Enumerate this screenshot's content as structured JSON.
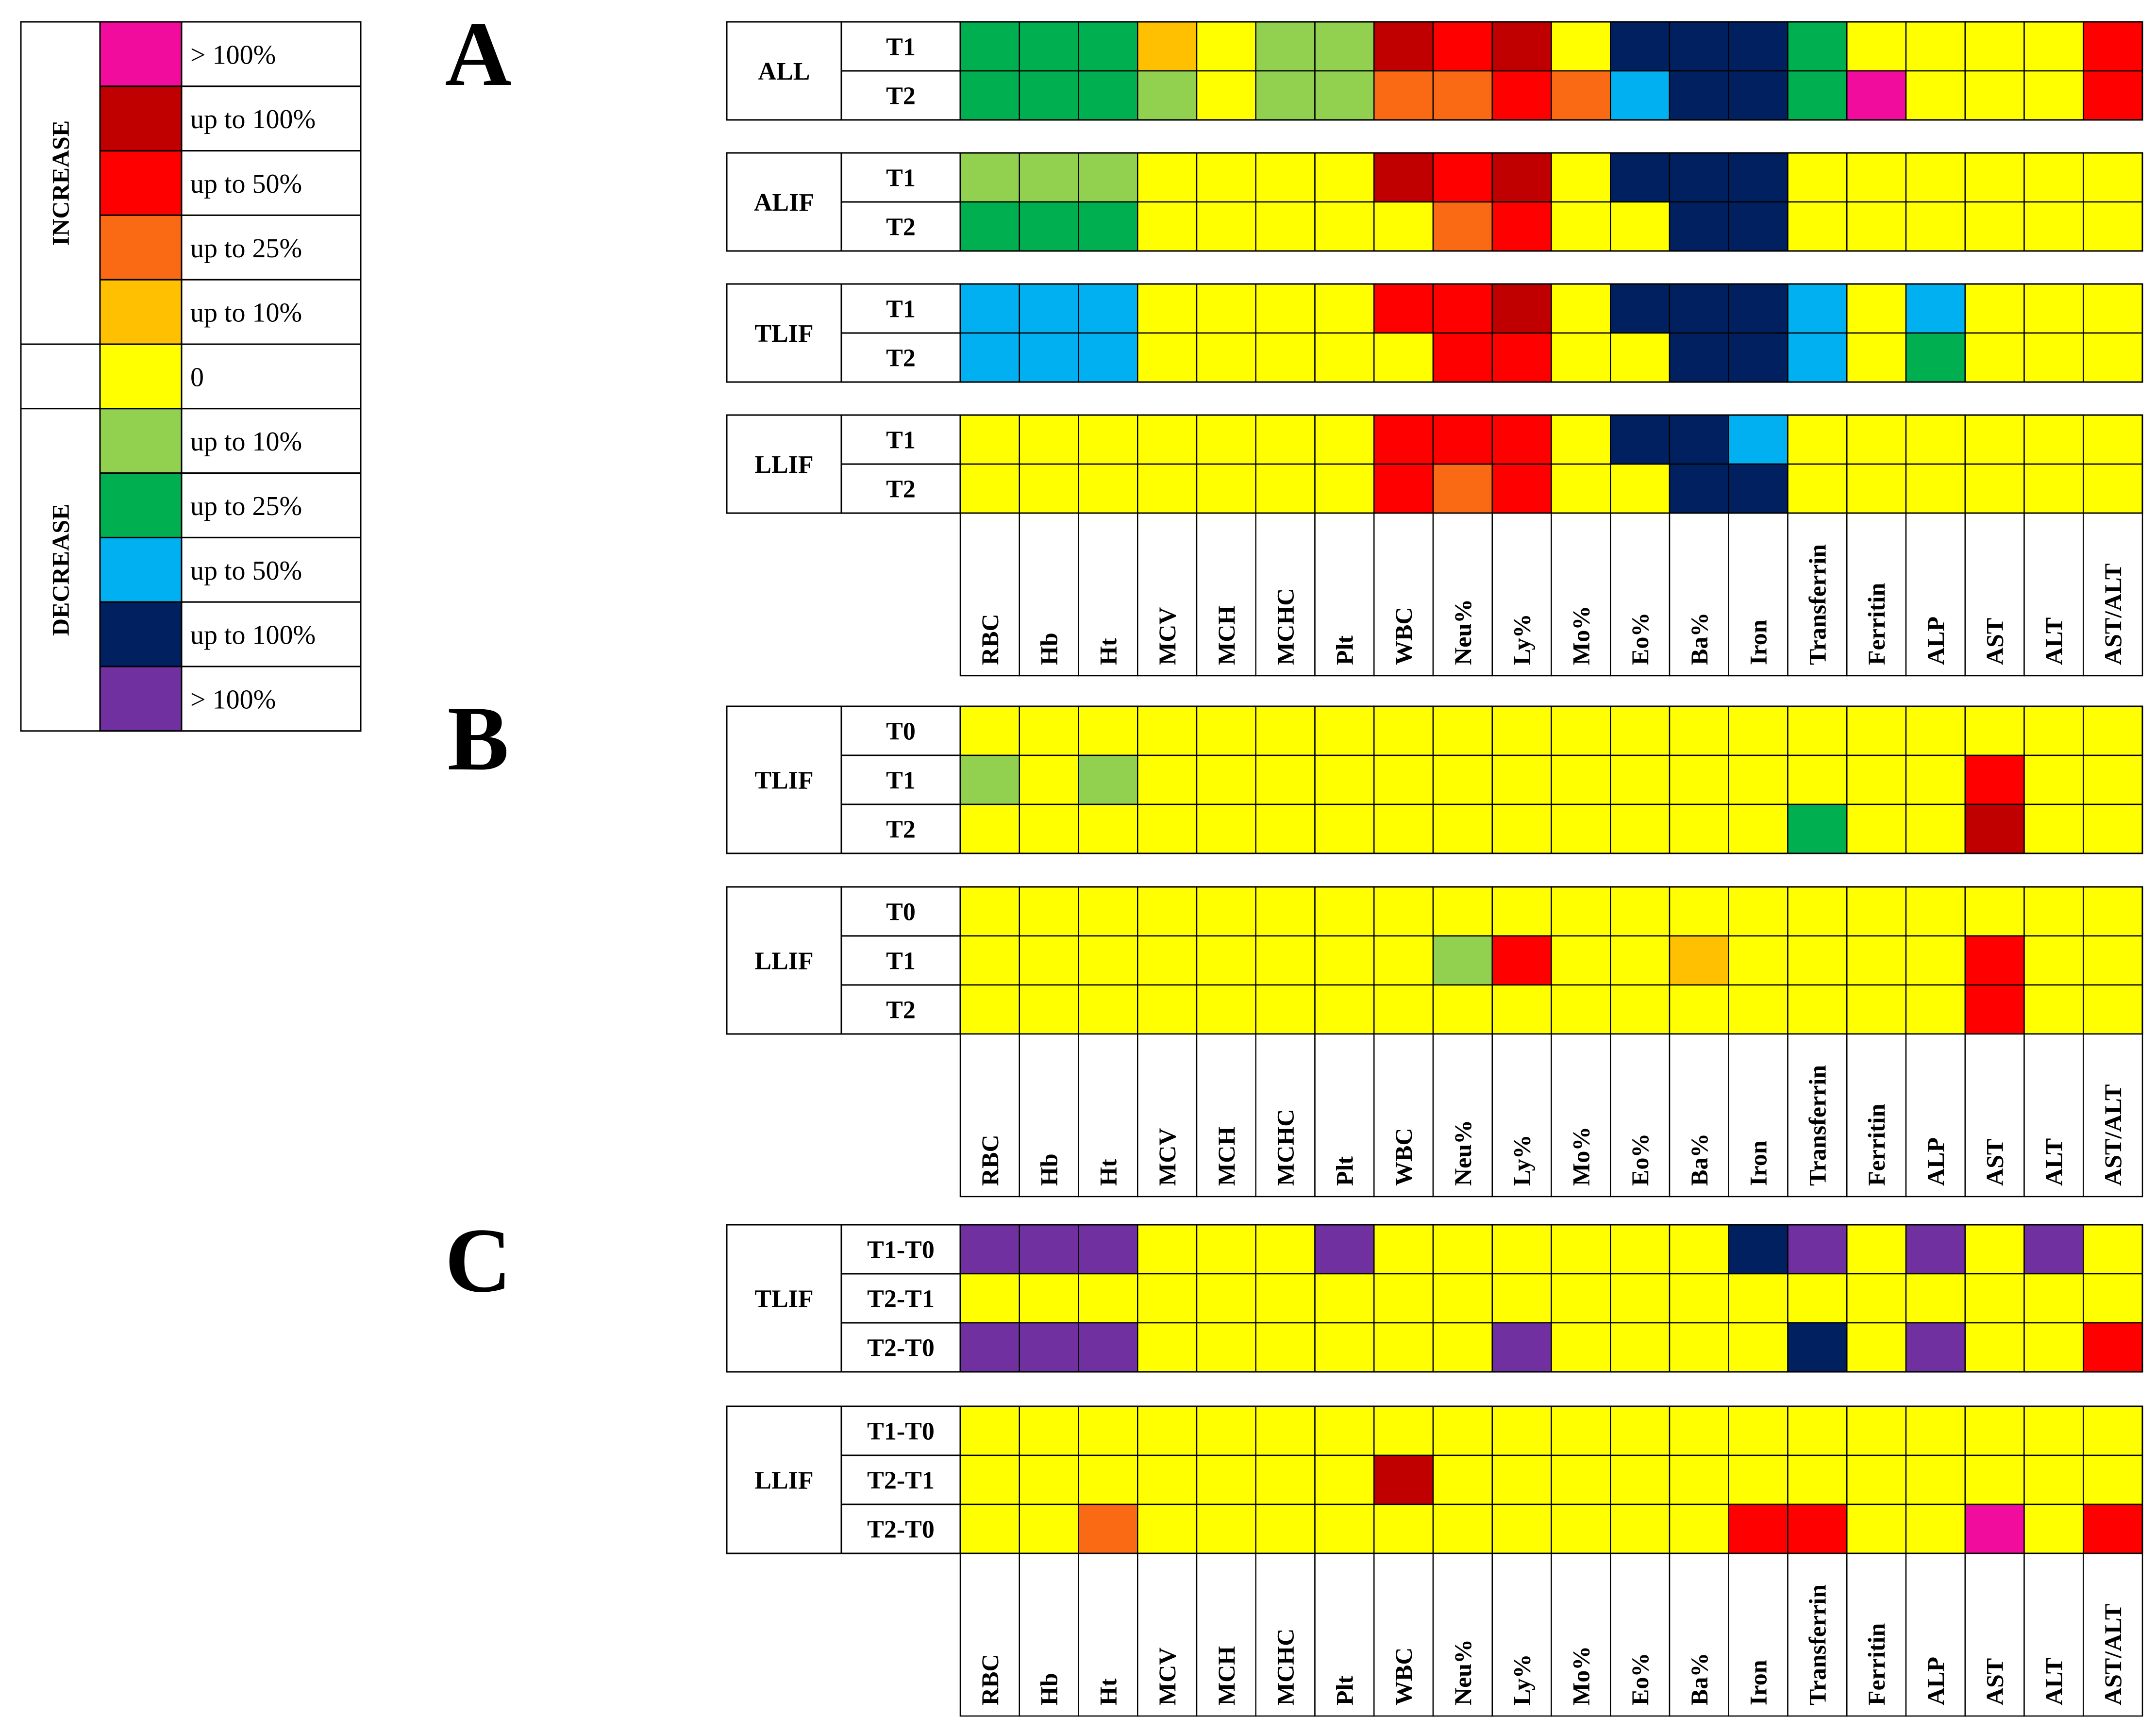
{
  "colors": {
    "inc_gt100": "#f20c9d",
    "inc_100": "#c00000",
    "inc_50": "#ff0000",
    "inc_25": "#fa6a14",
    "inc_10": "#fec000",
    "zero": "#ffff00",
    "dec_10": "#92d050",
    "dec_25": "#00b050",
    "dec_50": "#00b0f0",
    "dec_100": "#002060",
    "dec_gt100": "#7030a0"
  },
  "legend": {
    "increase_label": "INCREASE",
    "decrease_label": "DECREASE",
    "items": [
      {
        "key": "inc_gt100",
        "label": "> 100%"
      },
      {
        "key": "inc_100",
        "label": "up to 100%"
      },
      {
        "key": "inc_50",
        "label": "up to 50%"
      },
      {
        "key": "inc_25",
        "label": "up to 25%"
      },
      {
        "key": "inc_10",
        "label": "up to 10%"
      },
      {
        "key": "zero",
        "label": "0"
      },
      {
        "key": "dec_10",
        "label": "up to 10%"
      },
      {
        "key": "dec_25",
        "label": "up to 25%"
      },
      {
        "key": "dec_50",
        "label": "up to 50%"
      },
      {
        "key": "dec_100",
        "label": "up to 100%"
      },
      {
        "key": "dec_gt100",
        "label": "> 100%"
      }
    ]
  },
  "chart_data": {
    "type": "heatmap",
    "columns": [
      "RBC",
      "Hb",
      "Ht",
      "MCV",
      "MCH",
      "MCHC",
      "Plt",
      "WBC",
      "Neu%",
      "Ly%",
      "Mo%",
      "Eo%",
      "Ba%",
      "Iron",
      "Transferrin",
      "Ferritin",
      "ALP",
      "AST",
      "ALT",
      "AST/ALT"
    ],
    "panels": [
      {
        "label": "A",
        "groups": [
          {
            "name": "ALL",
            "rows": [
              {
                "label": "T1",
                "cells": [
                  "dec_25",
                  "dec_25",
                  "dec_25",
                  "inc_10",
                  "zero",
                  "dec_10",
                  "dec_10",
                  "inc_100",
                  "inc_50",
                  "inc_100",
                  "zero",
                  "dec_100",
                  "dec_100",
                  "dec_100",
                  "dec_25",
                  "zero",
                  "zero",
                  "zero",
                  "zero",
                  "inc_50"
                ]
              },
              {
                "label": "T2",
                "cells": [
                  "dec_25",
                  "dec_25",
                  "dec_25",
                  "dec_10",
                  "zero",
                  "dec_10",
                  "dec_10",
                  "inc_25",
                  "inc_25",
                  "inc_50",
                  "inc_25",
                  "dec_50",
                  "dec_100",
                  "dec_100",
                  "dec_25",
                  "inc_gt100",
                  "zero",
                  "zero",
                  "zero",
                  "inc_50"
                ]
              }
            ]
          },
          {
            "name": "ALIF",
            "rows": [
              {
                "label": "T1",
                "cells": [
                  "dec_10",
                  "dec_10",
                  "dec_10",
                  "zero",
                  "zero",
                  "zero",
                  "zero",
                  "inc_100",
                  "inc_50",
                  "inc_100",
                  "zero",
                  "dec_100",
                  "dec_100",
                  "dec_100",
                  "zero",
                  "zero",
                  "zero",
                  "zero",
                  "zero",
                  "zero"
                ]
              },
              {
                "label": "T2",
                "cells": [
                  "dec_25",
                  "dec_25",
                  "dec_25",
                  "zero",
                  "zero",
                  "zero",
                  "zero",
                  "zero",
                  "inc_25",
                  "inc_50",
                  "zero",
                  "zero",
                  "dec_100",
                  "dec_100",
                  "zero",
                  "zero",
                  "zero",
                  "zero",
                  "zero",
                  "zero"
                ]
              }
            ]
          },
          {
            "name": "TLIF",
            "rows": [
              {
                "label": "T1",
                "cells": [
                  "dec_50",
                  "dec_50",
                  "dec_50",
                  "zero",
                  "zero",
                  "zero",
                  "zero",
                  "inc_50",
                  "inc_50",
                  "inc_100",
                  "zero",
                  "dec_100",
                  "dec_100",
                  "dec_100",
                  "dec_50",
                  "zero",
                  "dec_50",
                  "zero",
                  "zero",
                  "zero"
                ]
              },
              {
                "label": "T2",
                "cells": [
                  "dec_50",
                  "dec_50",
                  "dec_50",
                  "zero",
                  "zero",
                  "zero",
                  "zero",
                  "zero",
                  "inc_50",
                  "inc_50",
                  "zero",
                  "zero",
                  "dec_100",
                  "dec_100",
                  "dec_50",
                  "zero",
                  "dec_25",
                  "zero",
                  "zero",
                  "zero"
                ]
              }
            ]
          },
          {
            "name": "LLIF",
            "rows": [
              {
                "label": "T1",
                "cells": [
                  "zero",
                  "zero",
                  "zero",
                  "zero",
                  "zero",
                  "zero",
                  "zero",
                  "inc_50",
                  "inc_50",
                  "inc_50",
                  "zero",
                  "dec_100",
                  "dec_100",
                  "dec_50",
                  "zero",
                  "zero",
                  "zero",
                  "zero",
                  "zero",
                  "zero"
                ]
              },
              {
                "label": "T2",
                "cells": [
                  "zero",
                  "zero",
                  "zero",
                  "zero",
                  "zero",
                  "zero",
                  "zero",
                  "inc_50",
                  "inc_25",
                  "inc_50",
                  "zero",
                  "zero",
                  "dec_100",
                  "dec_100",
                  "zero",
                  "zero",
                  "zero",
                  "zero",
                  "zero",
                  "zero"
                ]
              }
            ]
          }
        ]
      },
      {
        "label": "B",
        "groups": [
          {
            "name": "TLIF",
            "rows": [
              {
                "label": "T0",
                "cells": [
                  "zero",
                  "zero",
                  "zero",
                  "zero",
                  "zero",
                  "zero",
                  "zero",
                  "zero",
                  "zero",
                  "zero",
                  "zero",
                  "zero",
                  "zero",
                  "zero",
                  "zero",
                  "zero",
                  "zero",
                  "zero",
                  "zero",
                  "zero"
                ]
              },
              {
                "label": "T1",
                "cells": [
                  "dec_10",
                  "zero",
                  "dec_10",
                  "zero",
                  "zero",
                  "zero",
                  "zero",
                  "zero",
                  "zero",
                  "zero",
                  "zero",
                  "zero",
                  "zero",
                  "zero",
                  "zero",
                  "zero",
                  "zero",
                  "inc_50",
                  "zero",
                  "zero"
                ]
              },
              {
                "label": "T2",
                "cells": [
                  "zero",
                  "zero",
                  "zero",
                  "zero",
                  "zero",
                  "zero",
                  "zero",
                  "zero",
                  "zero",
                  "zero",
                  "zero",
                  "zero",
                  "zero",
                  "zero",
                  "dec_25",
                  "zero",
                  "zero",
                  "inc_100",
                  "zero",
                  "zero"
                ]
              }
            ]
          },
          {
            "name": "LLIF",
            "rows": [
              {
                "label": "T0",
                "cells": [
                  "zero",
                  "zero",
                  "zero",
                  "zero",
                  "zero",
                  "zero",
                  "zero",
                  "zero",
                  "zero",
                  "zero",
                  "zero",
                  "zero",
                  "zero",
                  "zero",
                  "zero",
                  "zero",
                  "zero",
                  "zero",
                  "zero",
                  "zero"
                ]
              },
              {
                "label": "T1",
                "cells": [
                  "zero",
                  "zero",
                  "zero",
                  "zero",
                  "zero",
                  "zero",
                  "zero",
                  "zero",
                  "dec_10",
                  "inc_50",
                  "zero",
                  "zero",
                  "inc_10",
                  "zero",
                  "zero",
                  "zero",
                  "zero",
                  "inc_50",
                  "zero",
                  "zero"
                ]
              },
              {
                "label": "T2",
                "cells": [
                  "zero",
                  "zero",
                  "zero",
                  "zero",
                  "zero",
                  "zero",
                  "zero",
                  "zero",
                  "zero",
                  "zero",
                  "zero",
                  "zero",
                  "zero",
                  "zero",
                  "zero",
                  "zero",
                  "zero",
                  "inc_50",
                  "zero",
                  "zero"
                ]
              }
            ]
          }
        ]
      },
      {
        "label": "C",
        "groups": [
          {
            "name": "TLIF",
            "rows": [
              {
                "label": "T1-T0",
                "cells": [
                  "dec_gt100",
                  "dec_gt100",
                  "dec_gt100",
                  "zero",
                  "zero",
                  "zero",
                  "dec_gt100",
                  "zero",
                  "zero",
                  "zero",
                  "zero",
                  "zero",
                  "zero",
                  "dec_100",
                  "dec_gt100",
                  "zero",
                  "dec_gt100",
                  "zero",
                  "dec_gt100",
                  "zero"
                ]
              },
              {
                "label": "T2-T1",
                "cells": [
                  "zero",
                  "zero",
                  "zero",
                  "zero",
                  "zero",
                  "zero",
                  "zero",
                  "zero",
                  "zero",
                  "zero",
                  "zero",
                  "zero",
                  "zero",
                  "zero",
                  "zero",
                  "zero",
                  "zero",
                  "zero",
                  "zero",
                  "zero"
                ]
              },
              {
                "label": "T2-T0",
                "cells": [
                  "dec_gt100",
                  "dec_gt100",
                  "dec_gt100",
                  "zero",
                  "zero",
                  "zero",
                  "zero",
                  "zero",
                  "zero",
                  "dec_gt100",
                  "zero",
                  "zero",
                  "zero",
                  "zero",
                  "dec_100",
                  "zero",
                  "dec_gt100",
                  "zero",
                  "zero",
                  "inc_50"
                ]
              }
            ]
          },
          {
            "name": "LLIF",
            "rows": [
              {
                "label": "T1-T0",
                "cells": [
                  "zero",
                  "zero",
                  "zero",
                  "zero",
                  "zero",
                  "zero",
                  "zero",
                  "zero",
                  "zero",
                  "zero",
                  "zero",
                  "zero",
                  "zero",
                  "zero",
                  "zero",
                  "zero",
                  "zero",
                  "zero",
                  "zero",
                  "zero"
                ]
              },
              {
                "label": "T2-T1",
                "cells": [
                  "zero",
                  "zero",
                  "zero",
                  "zero",
                  "zero",
                  "zero",
                  "zero",
                  "inc_100",
                  "zero",
                  "zero",
                  "zero",
                  "zero",
                  "zero",
                  "zero",
                  "zero",
                  "zero",
                  "zero",
                  "zero",
                  "zero",
                  "zero"
                ]
              },
              {
                "label": "T2-T0",
                "cells": [
                  "zero",
                  "zero",
                  "inc_25",
                  "zero",
                  "zero",
                  "zero",
                  "zero",
                  "zero",
                  "zero",
                  "zero",
                  "zero",
                  "zero",
                  "zero",
                  "inc_50",
                  "inc_50",
                  "zero",
                  "zero",
                  "inc_gt100",
                  "zero",
                  "inc_50"
                ]
              }
            ]
          }
        ]
      }
    ]
  }
}
